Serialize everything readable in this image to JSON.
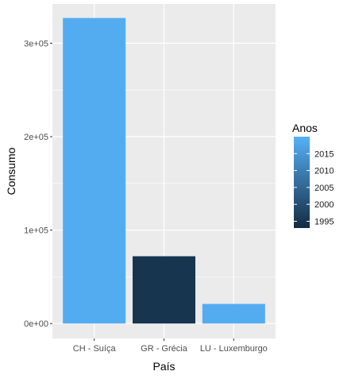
{
  "chart_data": {
    "type": "bar",
    "categories": [
      "CH - Suíça",
      "GR - Grécia",
      "LU - Luxemburgo"
    ],
    "values": [
      327000,
      72000,
      21000
    ],
    "years": [
      2019,
      1995,
      2019
    ],
    "xlabel": "País",
    "ylabel": "Consumo",
    "ylim": [
      -16000,
      342000
    ],
    "y_ticks": [
      0,
      100000,
      200000,
      300000
    ],
    "y_tick_labels": [
      "0e+00",
      "1e+05",
      "2e+05",
      "3e+05"
    ],
    "grid": true,
    "panel_background": "#ebebeb",
    "legend": {
      "title": "Anos",
      "placement": "right",
      "min": 1993,
      "max": 2020,
      "ticks": [
        1995,
        2000,
        2005,
        2010,
        2015
      ],
      "tick_labels": [
        "1995",
        "2000",
        "2005",
        "2010",
        "2015"
      ],
      "color_low": "#132b43",
      "color_high": "#56b1f7"
    }
  }
}
